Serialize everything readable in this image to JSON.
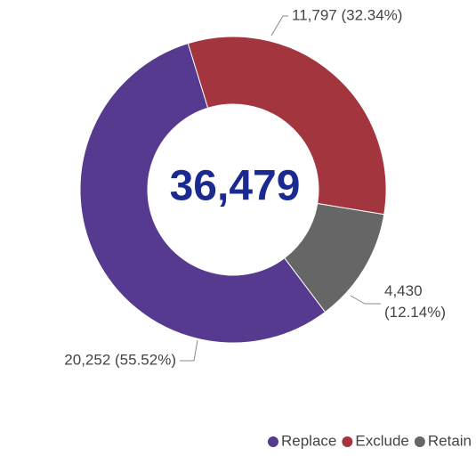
{
  "chart_data": {
    "type": "donut",
    "center_label": "36,479",
    "categories": [
      "Replace",
      "Exclude",
      "Retain"
    ],
    "values": [
      20252,
      11797,
      4430
    ],
    "value_labels": [
      "20,252 (55.52%)",
      "11,797 (32.34%)",
      "4,430 (12.14%)"
    ],
    "colors": [
      "#553a8f",
      "#a3353e",
      "#666666"
    ],
    "legend": "bottom-right"
  }
}
